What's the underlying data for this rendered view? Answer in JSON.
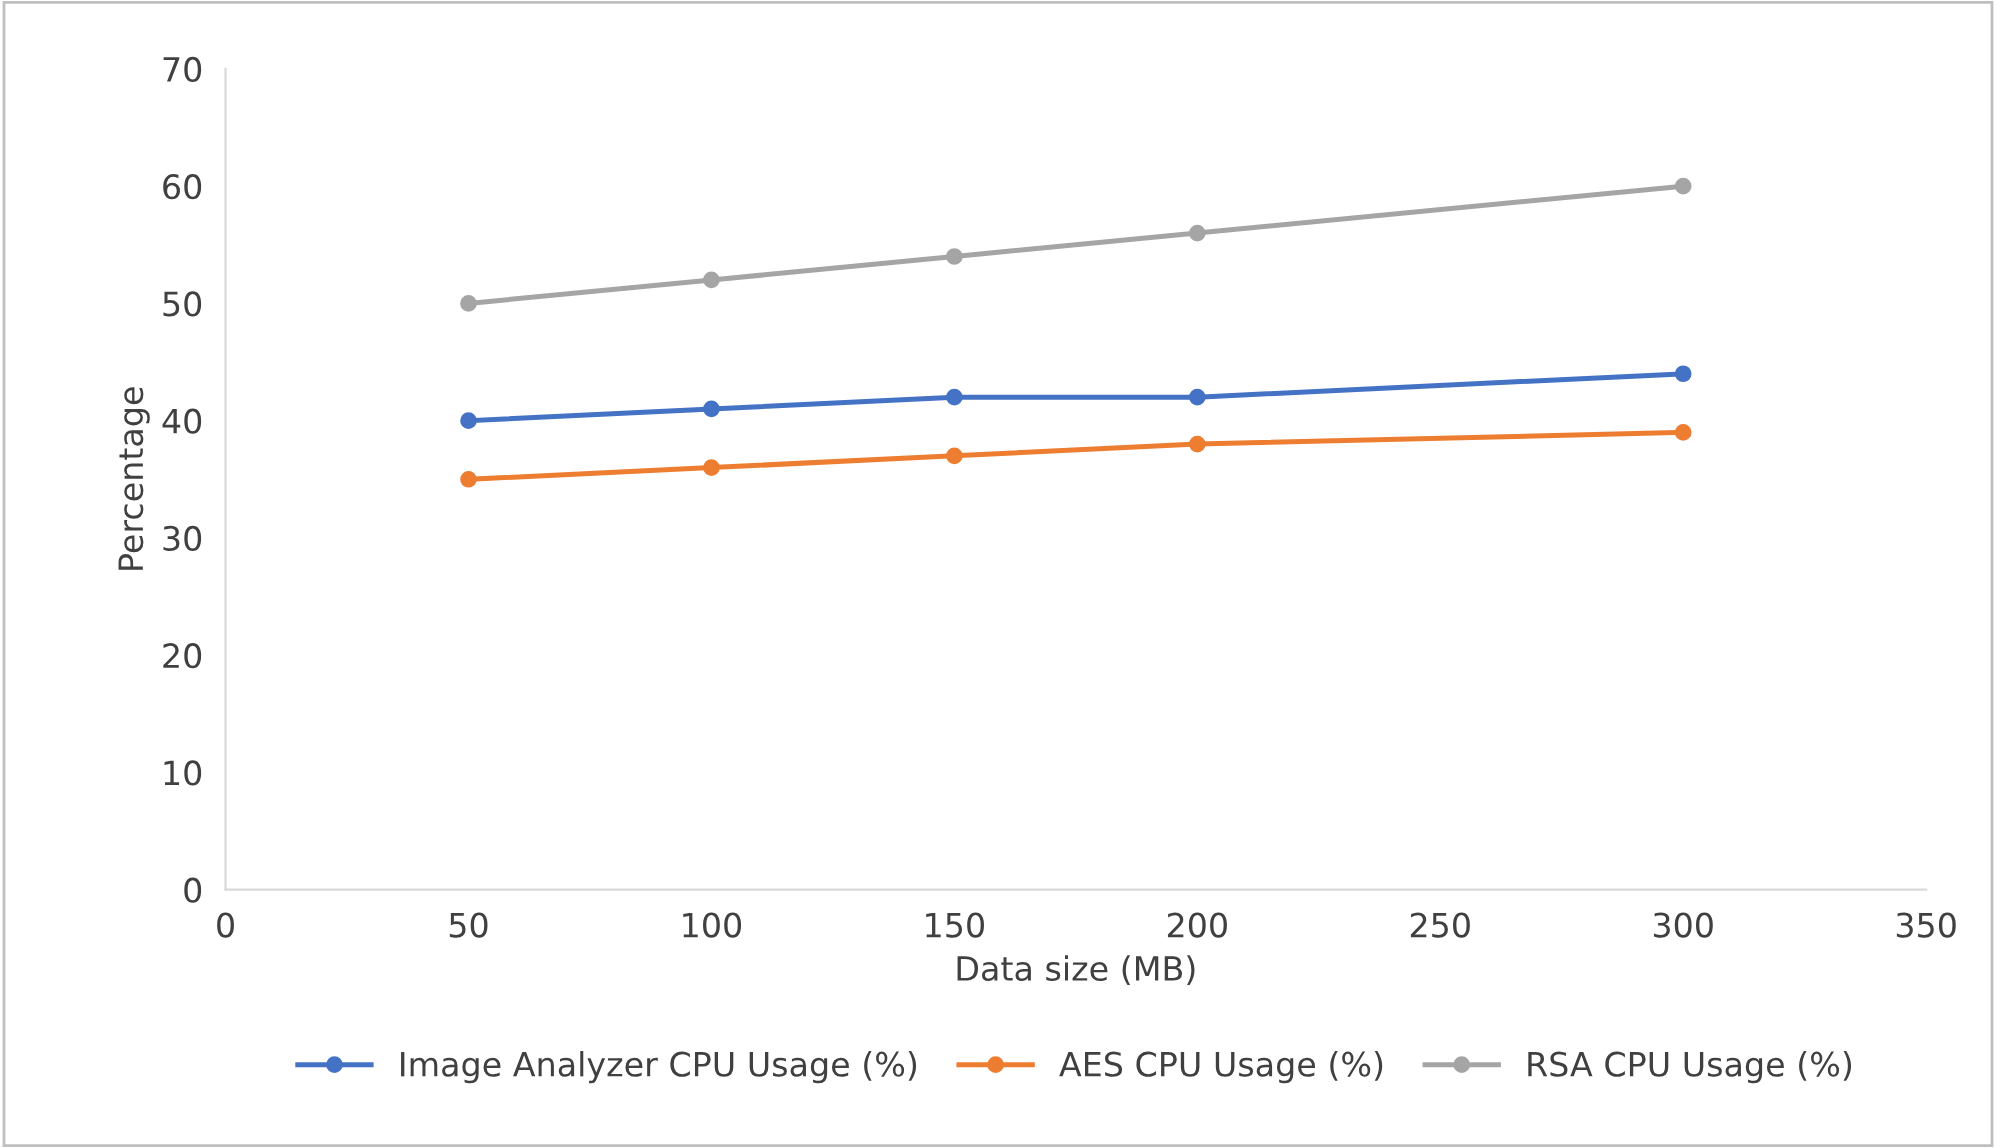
{
  "chart_data": {
    "type": "line",
    "xlabel": "Data size (MB)",
    "ylabel": "Percentage",
    "x": [
      50,
      100,
      150,
      200,
      300
    ],
    "series": [
      {
        "name": "Image Analyzer CPU Usage (%)",
        "color": "#4472c4",
        "values": [
          40,
          41,
          42,
          42,
          44
        ]
      },
      {
        "name": "AES CPU Usage (%)",
        "color": "#ed7d31",
        "values": [
          35,
          36,
          37,
          38,
          39
        ]
      },
      {
        "name": "RSA CPU Usage (%)",
        "color": "#a5a5a5",
        "values": [
          50,
          52,
          54,
          56,
          60
        ]
      }
    ],
    "xlim": [
      0,
      350
    ],
    "xticks": [
      0,
      50,
      100,
      150,
      200,
      250,
      300,
      350
    ],
    "ylim": [
      0,
      70
    ],
    "yticks": [
      0,
      10,
      20,
      30,
      40,
      50,
      60,
      70
    ],
    "grid": false,
    "legend": "bottom",
    "marker": "circle",
    "line_style": "solid"
  }
}
